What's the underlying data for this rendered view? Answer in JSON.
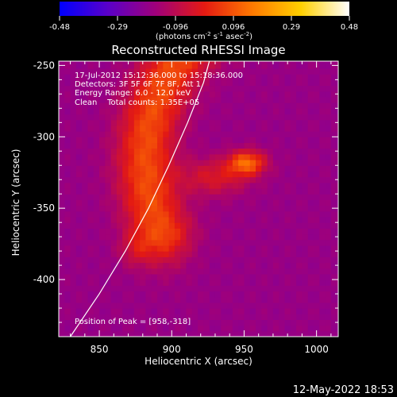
{
  "title": "Reconstructed RHESSI Image",
  "colorbar": {
    "tick_labels": [
      "-0.48",
      "-0.29",
      "-0.096",
      "0.096",
      "0.29",
      "0.48"
    ],
    "unit_main": "(photons cm",
    "unit_sup1": "-2",
    "unit_mid1": " s",
    "unit_sup2": "-1",
    "unit_mid2": " asec",
    "unit_sup3": "-2",
    "unit_end": ")",
    "colors": [
      "#0000ff",
      "#5a00c8",
      "#a0007a",
      "#e41a12",
      "#ff7a00",
      "#ffd000",
      "#ffffff"
    ]
  },
  "info": {
    "time_range": "17-Jul-2012 15:12:36.000 to 15:18:36.000",
    "detectors": "Detectors: 3F 5F 6F 7F 8F, Att 1",
    "energy_range": "Energy Range: 6.0 - 12.0 keV",
    "clean": "Clean    Total counts: 1.35E+05"
  },
  "peak_text": "Position of Peak = [958,-318]",
  "footer_date": "12-May-2022 18:53",
  "chart_data": {
    "type": "heatmap",
    "title": "Reconstructed RHESSI Image",
    "xlabel": "Heliocentric X (arcsec)",
    "ylabel": "Heliocentric Y (arcsec)",
    "x_tick_labels": [
      "850",
      "900",
      "950",
      "1000"
    ],
    "y_tick_labels": [
      "-250",
      "-300",
      "-350",
      "-400"
    ],
    "x_ticks": [
      850,
      900,
      950,
      1000
    ],
    "y_ticks": [
      -250,
      -300,
      -350,
      -400
    ],
    "xlim": [
      822,
      1015
    ],
    "ylim": [
      -440,
      -247
    ],
    "colorbar_range": [
      -0.48,
      0.48
    ],
    "peak": [
      958,
      -318
    ],
    "grid_spacing": 4,
    "background_value": -0.18,
    "sources": [
      {
        "x": 952,
        "y": -318,
        "sx": 9,
        "sy": 6,
        "amp": 0.3
      },
      {
        "x": 930,
        "y": -328,
        "sx": 16,
        "sy": 9,
        "amp": 0.15
      },
      {
        "x": 875,
        "y": -378,
        "sx": 8,
        "sy": 9,
        "amp": 0.09
      }
    ],
    "arc_center": [
      1002,
      -316
    ],
    "arc_radius": 120,
    "arc_width": 20,
    "arc_amp": 0.26,
    "arc_angle_range": [
      105,
      205
    ],
    "limb_curve": [
      [
        830,
        -440
      ],
      [
        850,
        -410
      ],
      [
        868,
        -380
      ],
      [
        884,
        -350
      ],
      [
        898,
        -320
      ],
      [
        911,
        -290
      ],
      [
        922,
        -262
      ],
      [
        926,
        -247
      ]
    ]
  }
}
